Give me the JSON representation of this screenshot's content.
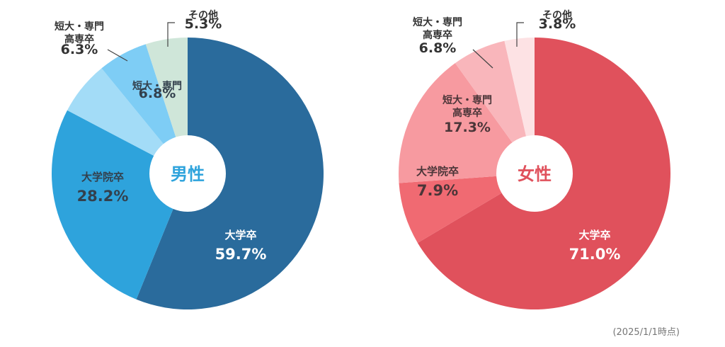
{
  "chart_data": [
    {
      "type": "pie",
      "center_label": "男性",
      "slices": [
        {
          "label": "大学卒",
          "value": 59.7,
          "value_text": "59.7%",
          "color": "#2a6b9c",
          "text_color": "#ffffff"
        },
        {
          "label": "大学院卒",
          "value": 28.2,
          "value_text": "28.2%",
          "color": "#2ea3dc",
          "text_color": "#33404d"
        },
        {
          "label": "短大・専門 高専卒",
          "value": 6.3,
          "value_text": "6.3%",
          "color": "#7ecdf5",
          "text_color": "#333333"
        },
        {
          "label": "短大・専門",
          "value": 6.8,
          "value_text": "6.8%",
          "color": "#a3dcf7",
          "text_color": "#33404d"
        },
        {
          "label": "その他",
          "value": 5.3,
          "value_text": "5.3%",
          "color": "#cfe6d9",
          "text_color": "#333333"
        }
      ],
      "accent_color": "#2ea3dc"
    },
    {
      "type": "pie",
      "center_label": "女性",
      "slices": [
        {
          "label": "大学卒",
          "value": 71.0,
          "value_text": "71.0%",
          "color": "#e0515c",
          "text_color": "#ffffff"
        },
        {
          "label": "大学院卒",
          "value": 7.9,
          "value_text": "7.9%",
          "color": "#f06a72",
          "text_color": "#4a3538"
        },
        {
          "label": "短大・専門 高専卒",
          "value": 17.3,
          "value_text": "17.3%",
          "color": "#f79aa0",
          "text_color": "#4a3538"
        },
        {
          "label": "短大・専門 高専卒",
          "value": 6.8,
          "value_text": "6.8%",
          "color": "#f9b6bb",
          "text_color": "#333333"
        },
        {
          "label": "その他",
          "value": 3.8,
          "value_text": "3.8%",
          "color": "#fde2e4",
          "text_color": "#333333"
        }
      ],
      "accent_color": "#e0515c"
    }
  ],
  "footnote": "(2025/1/1時点)"
}
